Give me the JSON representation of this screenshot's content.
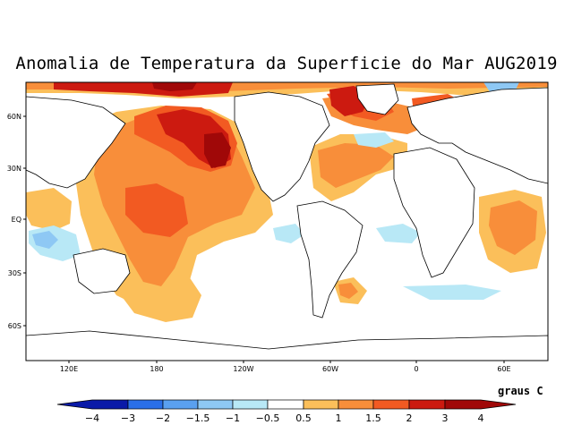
{
  "title": "Anomalia de Temperatura da Superficie do Mar AUG2019",
  "units": "graus C",
  "lat_labels": [
    "60N",
    "30N",
    "EQ",
    "30S",
    "60S"
  ],
  "lon_labels": [
    "120E",
    "180",
    "120W",
    "60W",
    "0",
    "60E"
  ],
  "colorbar": {
    "labels": [
      "−4",
      "−3",
      "−2",
      "−1.5",
      "−1",
      "−0.5",
      "0.5",
      "1",
      "1.5",
      "2",
      "3",
      "4"
    ],
    "colors": [
      "#0a1aa8",
      "#2a6fe8",
      "#5aa0f0",
      "#8ec8f4",
      "#b8e8f6",
      "#ffffff",
      "#fbbf5a",
      "#f88e3a",
      "#f25a22",
      "#cc1a10",
      "#a00808"
    ]
  },
  "colors": {
    "warm_strong": "#a00808",
    "warm_red": "#cc1a10",
    "warm_orange": "#f25a22",
    "warm_light": "#f88e3a",
    "warm_pale": "#fbbf5a",
    "cool_pale": "#b8e8f6",
    "cool_light": "#8ec8f4"
  }
}
